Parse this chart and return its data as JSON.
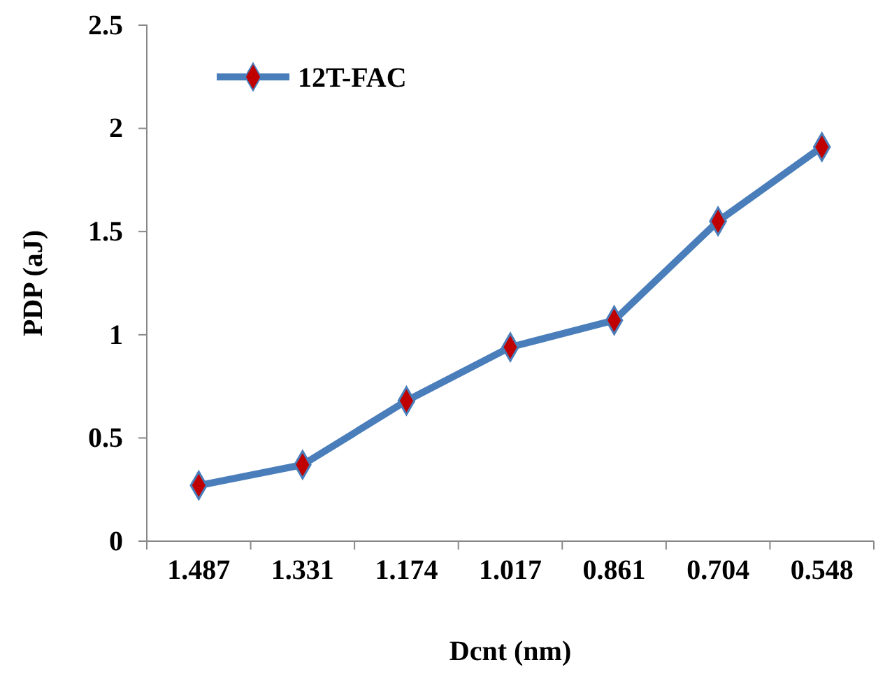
{
  "chart_data": {
    "type": "line",
    "xlabel": "Dcnt (nm)",
    "ylabel": "PDP (aJ)",
    "categories": [
      "1.487",
      "1.331",
      "1.174",
      "1.017",
      "0.861",
      "0.704",
      "0.548"
    ],
    "series": [
      {
        "name": "12T-FAC",
        "color": "#4a7ebb",
        "values": [
          0.27,
          0.37,
          0.68,
          0.94,
          1.07,
          1.55,
          1.91
        ]
      }
    ],
    "ylim": [
      0,
      2.5
    ],
    "yticks": [
      0,
      0.5,
      1,
      1.5,
      2,
      2.5
    ],
    "grid": false,
    "legend": "top left",
    "marker": "diamond",
    "line_style": "solid"
  }
}
